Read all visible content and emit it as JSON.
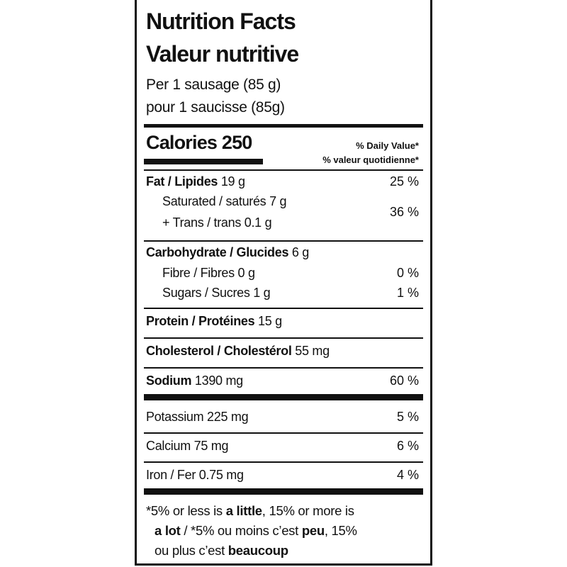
{
  "label": {
    "title": [
      "Nutrition Facts",
      "Valeur nutritive"
    ],
    "serving": [
      "Per 1 sausage (85 g)",
      "pour 1 saucisse (85g)"
    ],
    "calories": {
      "label": "Calories",
      "amount": "250"
    },
    "daily_value": [
      "% Daily Value*",
      "% valeur quotidienne*"
    ],
    "fat": {
      "name": "Fat / Lipides",
      "amount": "19 g",
      "dv": "25 %"
    },
    "saturated": {
      "name": "Saturated / saturés",
      "amount": "7 g"
    },
    "trans": {
      "name": "+ Trans / trans",
      "amount": "0.1 g"
    },
    "saturated_trans_dv": "36 %",
    "carbohydrate": {
      "name": "Carbohydrate / Glucides",
      "amount": "6 g"
    },
    "fibre": {
      "name": "Fibre / Fibres",
      "amount": "0 g",
      "dv": "0 %"
    },
    "sugars": {
      "name": "Sugars / Sucres",
      "amount": "1 g",
      "dv": "1 %"
    },
    "protein": {
      "name": "Protein / Protéines",
      "amount": "15 g"
    },
    "cholesterol": {
      "name": "Cholesterol / Cholestérol",
      "amount": "55 mg"
    },
    "sodium": {
      "name": "Sodium",
      "amount": "1390 mg",
      "dv": "60 %"
    },
    "potassium": {
      "name": "Potassium",
      "amount": "225 mg",
      "dv": "5 %"
    },
    "calcium": {
      "name": "Calcium",
      "amount": "75 mg",
      "dv": "6 %"
    },
    "iron": {
      "name": "Iron / Fer",
      "amount": "0.75 mg",
      "dv": "4 %"
    },
    "footnote": [
      "*5% or less is ",
      "a little",
      ", 15% or more is",
      "a lot",
      " / *5% ou moins c’est ",
      "peu",
      ", 15%",
      "ou plus c’est ",
      "beaucoup"
    ]
  }
}
